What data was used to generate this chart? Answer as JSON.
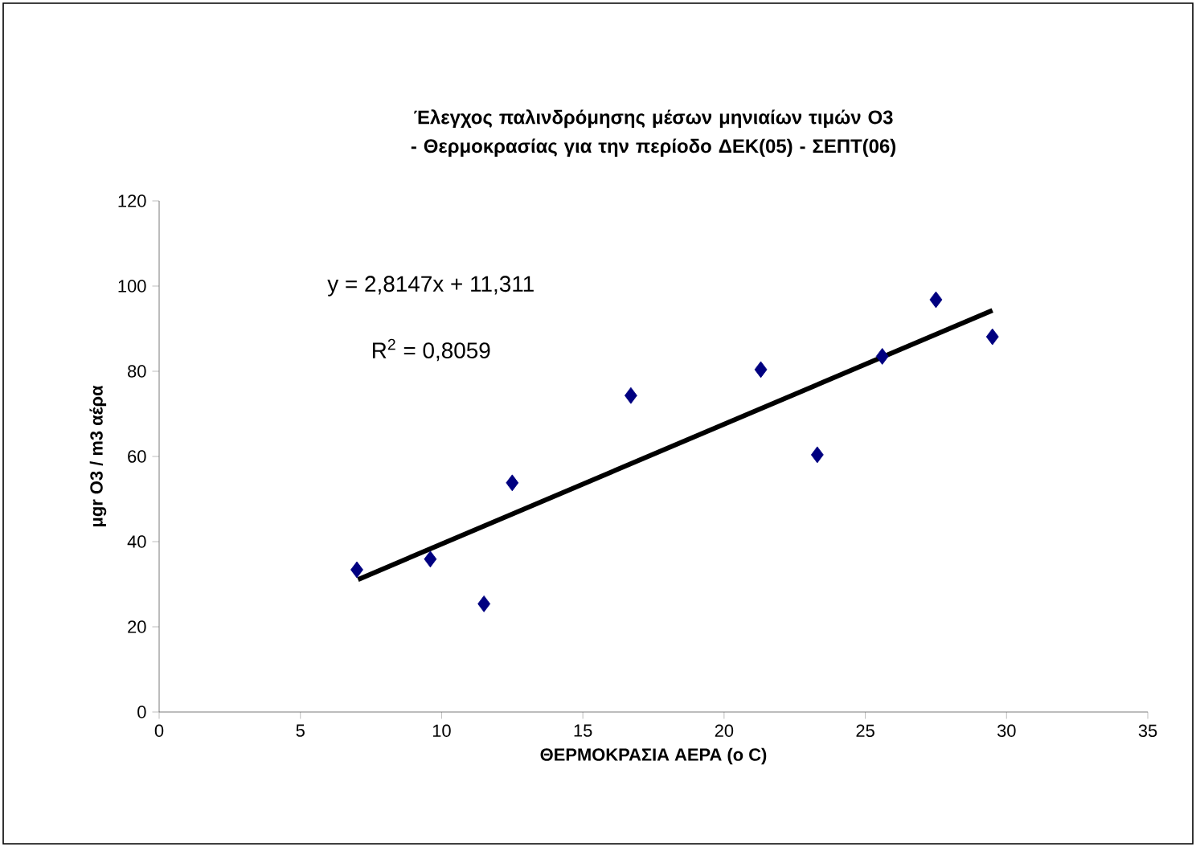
{
  "chart_data": {
    "type": "scatter",
    "title": "Έλεγχος παλινδρόμησης μέσων μηνιαίων τιμών Ο3 - Θερμοκρασίας για την περίοδο ΔΕΚ(05) - ΣΕΠΤ(06)",
    "xlabel": "ΘΕΡΜΟΚΡΑΣΙΑ ΑΕΡΑ (o C)",
    "ylabel": "μgr O3 / m3 αέρα",
    "xlim": [
      0,
      35
    ],
    "xticks": [
      0,
      5,
      10,
      15,
      20,
      25,
      30,
      35
    ],
    "ylim": [
      0,
      120
    ],
    "yticks": [
      0,
      20,
      40,
      60,
      80,
      100,
      120
    ],
    "grid": false,
    "annotations": [
      "y = 2,8147x + 11,311",
      "R$^{2}$ = 0,8059"
    ],
    "series": [
      {
        "color": "#000080",
        "marker": "diamond",
        "x": [
          7.0,
          9.6,
          11.5,
          12.5,
          16.7,
          21.3,
          23.3,
          25.6,
          27.5,
          29.5
        ],
        "values": [
          33.4,
          35.9,
          25.4,
          53.8,
          74.3,
          80.4,
          60.4,
          83.5,
          96.8,
          88.1
        ]
      },
      {
        "type": "line",
        "color": "#000000",
        "marker": "none",
        "line_style": "solid",
        "x": [
          7.04,
          29.5
        ],
        "values": [
          31.1,
          94.3
        ]
      }
    ]
  }
}
